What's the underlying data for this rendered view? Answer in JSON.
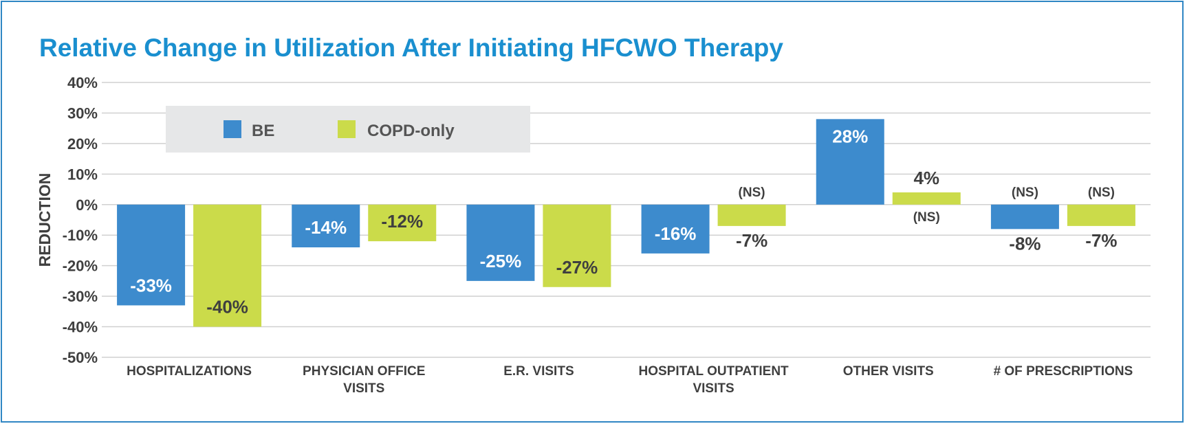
{
  "title": "Relative Change in Utilization After Initiating HFCWO Therapy",
  "colors": {
    "title": "#1a8fcf",
    "frame": "#2f86c4",
    "grid": "#d0d0d0",
    "axis_text": "#3f3f3f",
    "legend_bg": "#e6e7e8"
  },
  "chart_data": {
    "type": "bar",
    "title": "Relative Change in Utilization After Initiating HFCWO Therapy",
    "ylabel": "REDUCTION",
    "xlabel": "",
    "ylim": [
      -50,
      40
    ],
    "yticks": [
      40,
      30,
      20,
      10,
      0,
      -10,
      -20,
      -30,
      -40,
      -50
    ],
    "ytick_labels": [
      "40%",
      "30%",
      "20%",
      "10%",
      "0%",
      "-10%",
      "-20%",
      "-30%",
      "-40%",
      "-50%"
    ],
    "grid": true,
    "legend_position": "top-left",
    "categories": [
      [
        "HOSPITALIZATIONS"
      ],
      [
        "PHYSICIAN OFFICE",
        "VISITS"
      ],
      [
        "E.R. VISITS"
      ],
      [
        "HOSPITAL OUTPATIENT",
        "VISITS"
      ],
      [
        "OTHER VISITS"
      ],
      [
        "# OF PRESCRIPTIONS"
      ]
    ],
    "series": [
      {
        "name": "BE",
        "color": "#3d8bcd",
        "values": [
          -33,
          -14,
          -25,
          -16,
          28,
          -8
        ],
        "labels": [
          "-33%",
          "-14%",
          "-25%",
          "-16%",
          "28%",
          "-8%"
        ],
        "notes": [
          "",
          "",
          "",
          "",
          "",
          "(NS)"
        ]
      },
      {
        "name": "COPD-only",
        "color": "#cbdb4a",
        "values": [
          -40,
          -12,
          -27,
          -7,
          4,
          -7
        ],
        "labels": [
          "-40%",
          "-12%",
          "-27%",
          "-7%",
          "4%",
          "-7%"
        ],
        "notes": [
          "",
          "",
          "",
          "(NS)",
          "(NS)",
          "(NS)"
        ]
      }
    ]
  }
}
